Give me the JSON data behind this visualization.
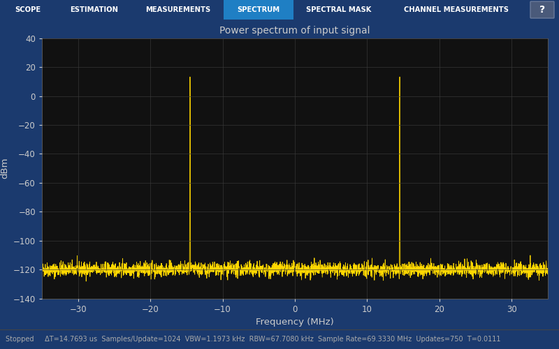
{
  "title": "Power spectrum of input signal",
  "xlabel": "Frequency (MHz)",
  "ylabel": "dBm",
  "xlim": [
    -35,
    35
  ],
  "ylim": [
    -140,
    40
  ],
  "yticks": [
    -140,
    -120,
    -100,
    -80,
    -60,
    -40,
    -20,
    0,
    20,
    40
  ],
  "xticks": [
    -30,
    -20,
    -10,
    0,
    10,
    20,
    30
  ],
  "noise_floor": -120,
  "noise_std": 2.5,
  "spike1_freq": -14.5,
  "spike2_freq": 14.5,
  "spike_top": 25,
  "spike_color": "#FFD700",
  "plot_bg": "#111111",
  "grid_color": "#3a3a3a",
  "tick_color": "#cccccc",
  "title_color": "#cccccc",
  "axis_label_color": "#cccccc",
  "spine_color": "#555555",
  "tab_bar_color": "#1b3a6e",
  "tab_active_color": "#1f7fc4",
  "tab_text_color": "#ffffff",
  "tabs": [
    "SCOPE",
    "ESTIMATION",
    "MEASUREMENTS",
    "SPECTRUM",
    "SPECTRAL MASK",
    "CHANNEL MEASUREMENTS"
  ],
  "active_tab_index": 3,
  "status_bg": "#1e1e1e",
  "status_text_color": "#aaaaaa",
  "status_bar_text": "Stopped     ΔT=14.7693 us  Samples/Update=1024  VBW=1.1973 kHz  RBW=67.7080 kHz  Sample Rate=69.3330 MHz  Updates=750  T=0.0111",
  "help_btn_color": "#4a5a7a",
  "help_btn_border": "#6a7a9a",
  "outer_bg": "#1b3a6e",
  "fig_width": 8.0,
  "fig_height": 5.0,
  "dpi": 100
}
